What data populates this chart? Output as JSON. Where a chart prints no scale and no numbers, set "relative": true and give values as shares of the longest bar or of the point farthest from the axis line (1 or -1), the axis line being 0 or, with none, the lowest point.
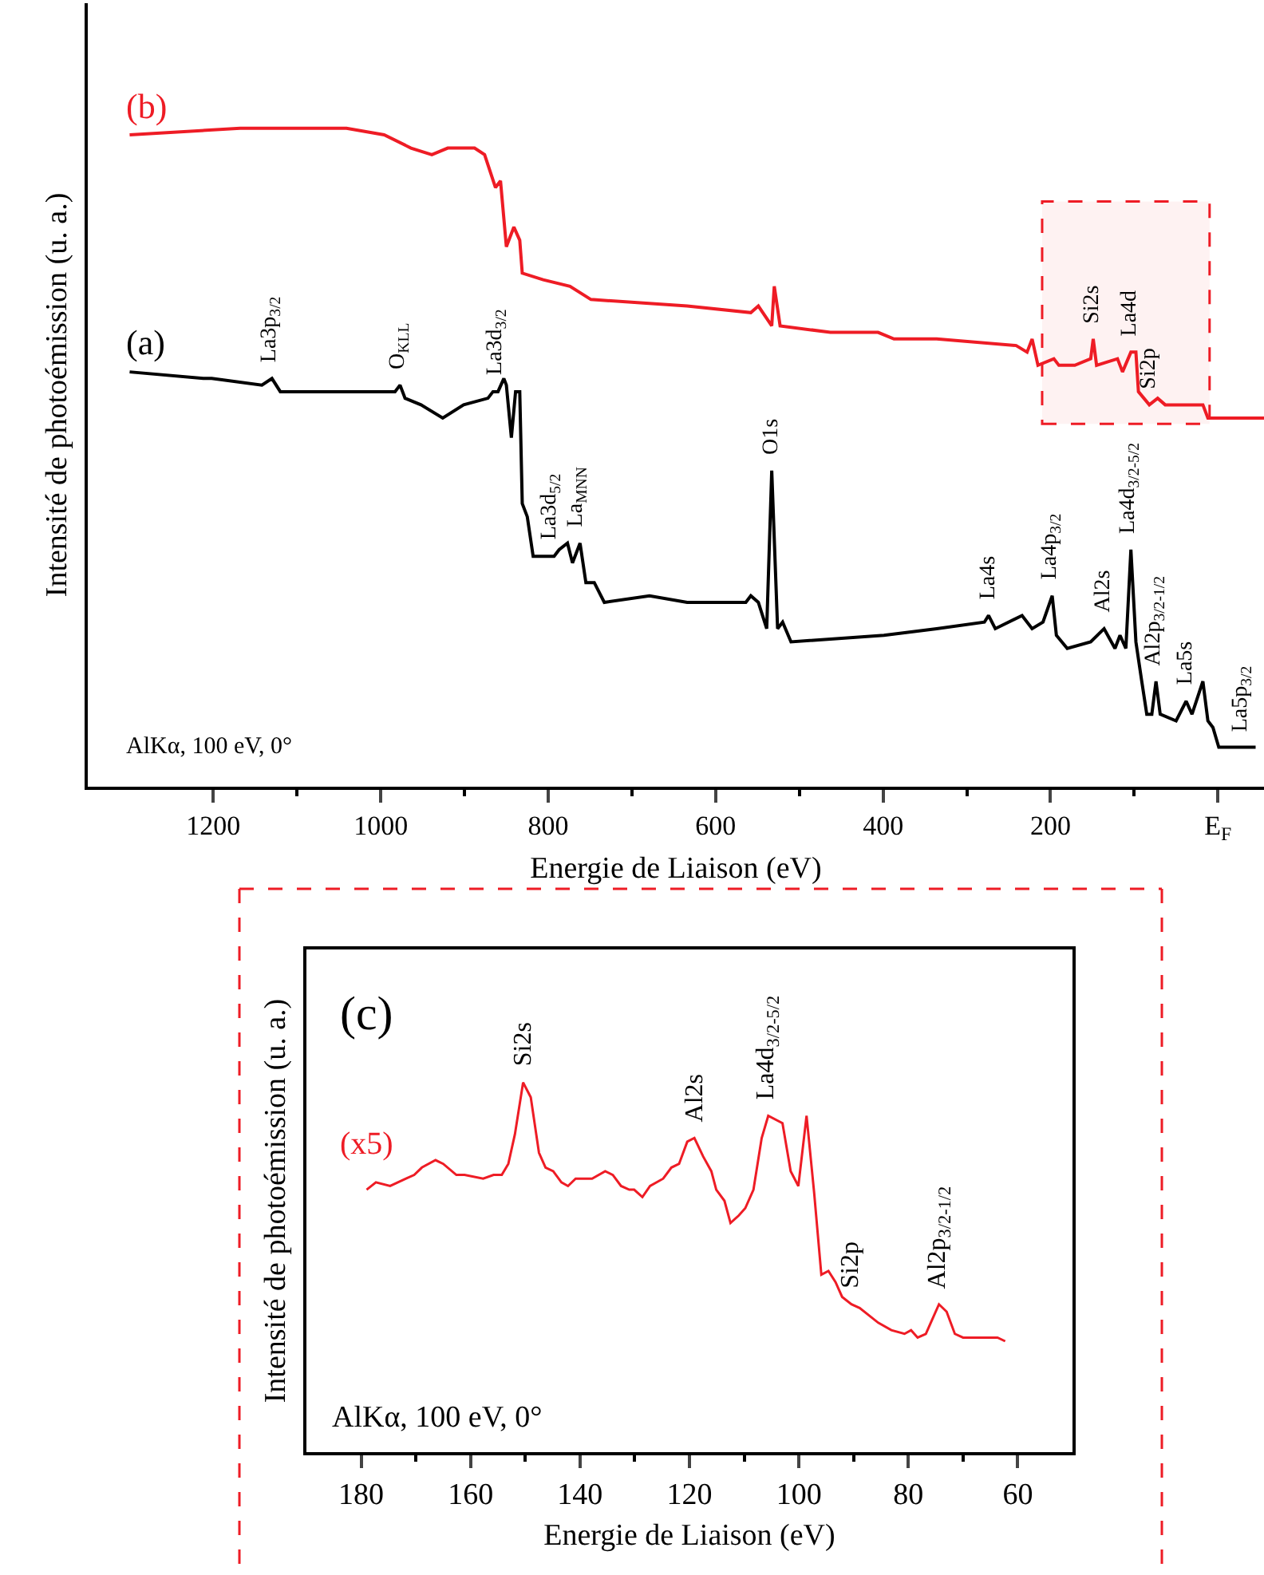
{
  "chart_data": [
    {
      "type": "line",
      "relative": true,
      "xlabel": "Energie de Liaison (eV)",
      "ylabel": "Intensité de photoémission (u. a.)",
      "xlim": [
        1350,
        -55
      ],
      "xticks": [
        1200,
        1000,
        800,
        600,
        400,
        200,
        {
          "value": 0,
          "label": "E$_{F}$"
        }
      ],
      "grid": false,
      "legend": false,
      "line_style": "solid",
      "series": [
        {
          "name": "(b)",
          "color": "#ee1c25",
          "x": [
            1300,
            1168,
            1041,
            996,
            964,
            939,
            920,
            888,
            876,
            863,
            857,
            850,
            841,
            834,
            831,
            806,
            774,
            749,
            634,
            558,
            549,
            533,
            530,
            523,
            463,
            406,
            387,
            336,
            241,
            228,
            222,
            215,
            196,
            190,
            171,
            152,
            149,
            145,
            120,
            114,
            104,
            98,
            95,
            82,
            72,
            63,
            18,
            12,
            -55
          ],
          "values": [
            0.99,
            1.0,
            1.0,
            0.99,
            0.97,
            0.96,
            0.97,
            0.97,
            0.96,
            0.91,
            0.92,
            0.82,
            0.85,
            0.83,
            0.78,
            0.77,
            0.76,
            0.74,
            0.73,
            0.72,
            0.73,
            0.7,
            0.76,
            0.7,
            0.69,
            0.69,
            0.68,
            0.68,
            0.67,
            0.66,
            0.68,
            0.64,
            0.65,
            0.64,
            0.64,
            0.65,
            0.68,
            0.64,
            0.65,
            0.63,
            0.66,
            0.66,
            0.6,
            0.58,
            0.59,
            0.58,
            0.58,
            0.56,
            0.56
          ]
        },
        {
          "name": "(a)",
          "color": "#000000",
          "x": [
            1300,
            1212,
            1208,
            1202,
            1142,
            1130,
            1120,
            1072,
            983,
            977,
            971,
            952,
            926,
            901,
            872,
            866,
            860,
            853,
            850,
            844,
            839,
            834,
            831,
            825,
            818,
            793,
            787,
            777,
            771,
            762,
            755,
            745,
            733,
            679,
            634,
            564,
            558,
            549,
            539,
            533,
            526,
            520,
            510,
            399,
            336,
            279,
            274,
            266,
            234,
            222,
            209,
            198,
            193,
            180,
            152,
            136,
            123,
            117,
            110,
            104,
            98,
            91,
            85,
            79,
            74,
            69,
            50,
            38,
            31,
            18,
            12,
            6,
            -1,
            -45
          ],
          "values": [
            0.63,
            0.62,
            0.62,
            0.62,
            0.61,
            0.62,
            0.6,
            0.6,
            0.6,
            0.61,
            0.59,
            0.58,
            0.56,
            0.58,
            0.59,
            0.6,
            0.6,
            0.62,
            0.61,
            0.53,
            0.6,
            0.6,
            0.43,
            0.41,
            0.35,
            0.35,
            0.36,
            0.37,
            0.34,
            0.37,
            0.31,
            0.31,
            0.28,
            0.29,
            0.28,
            0.28,
            0.29,
            0.28,
            0.24,
            0.48,
            0.24,
            0.25,
            0.22,
            0.23,
            0.24,
            0.25,
            0.26,
            0.24,
            0.26,
            0.24,
            0.25,
            0.29,
            0.23,
            0.21,
            0.22,
            0.24,
            0.21,
            0.23,
            0.21,
            0.36,
            0.22,
            0.16,
            0.11,
            0.11,
            0.16,
            0.11,
            0.1,
            0.13,
            0.11,
            0.16,
            0.1,
            0.09,
            0.06,
            0.06
          ]
        }
      ],
      "bands": [
        {
          "axis": "x",
          "from": 210,
          "to": 10,
          "color": "#ee1c25"
        }
      ],
      "annotations": [
        {
          "text": "La3p$_{3/2}$",
          "x": 1130,
          "y": 0.62
        },
        {
          "text": "O$_{KLL}$",
          "x": 977,
          "y": 0.61
        },
        {
          "text": "La3d$_{3/2}$",
          "x": 860,
          "y": 0.6
        },
        {
          "text": "La3d$_{5/2}$",
          "x": 797,
          "y": 0.35
        },
        {
          "text": "La$_{MNN}$",
          "x": 765,
          "y": 0.37
        },
        {
          "text": "O1s",
          "x": 533,
          "y": 0.48
        },
        {
          "text": "La4s",
          "x": 274,
          "y": 0.26
        },
        {
          "text": "La4p$_{3/2}$",
          "x": 198,
          "y": 0.29
        },
        {
          "text": "Al2s",
          "x": 136,
          "y": 0.24
        },
        {
          "text": "La4d$_{3/2-5/2}$",
          "x": 104,
          "y": 0.36
        },
        {
          "text": "Al2p$_{3/2-1/2}$",
          "x": 74,
          "y": 0.16
        },
        {
          "text": "La5s",
          "x": 38,
          "y": 0.13
        },
        {
          "text": "La5p$_{3/2}$",
          "x": -30,
          "y": 0.06
        },
        {
          "text": "Si2s",
          "x": 150,
          "y": 0.68
        },
        {
          "text": "La4d",
          "x": 106,
          "y": 0.66
        },
        {
          "text": "Si2p",
          "x": 82,
          "y": 0.58
        },
        "AlKα, 100 eV, 0°"
      ]
    },
    {
      "type": "line",
      "relative": true,
      "xlabel": "Energie de Liaison (eV)",
      "ylabel": "Intensité de photoémission (u. a.)",
      "xlim": [
        190,
        50
      ],
      "xticks": [
        180,
        160,
        140,
        120,
        100,
        80,
        60
      ],
      "grid": false,
      "legend": false,
      "line_style": "solid",
      "series": [
        {
          "name": "(x5)",
          "color": "#ee1c25",
          "x": [
            179,
            177.3,
            174.7,
            171.8,
            170.3,
            168.9,
            166.4,
            165,
            162.6,
            161.1,
            157.7,
            155.8,
            154.3,
            153.1,
            151.9,
            150.4,
            149,
            147.5,
            146.3,
            144.9,
            143.4,
            142.2,
            140.8,
            139.3,
            137.8,
            135.4,
            134,
            132.5,
            131,
            130.1,
            128.6,
            127.2,
            124.8,
            123.3,
            121.9,
            120.4,
            119.1,
            117.5,
            116,
            115.1,
            113.6,
            112.5,
            111,
            109.8,
            108.3,
            106.8,
            105.6,
            103,
            101.5,
            100.1,
            98.6,
            97.2,
            95.9,
            94.6,
            93.3,
            92.1,
            90.4,
            88.9,
            85.5,
            83.1,
            80.7,
            79.5,
            78.3,
            76.8,
            75.9,
            74.4,
            73,
            71.5,
            70,
            67.6,
            65.7,
            63.7,
            62.3
          ],
          "values": [
            0.71,
            0.73,
            0.72,
            0.74,
            0.75,
            0.77,
            0.79,
            0.78,
            0.75,
            0.75,
            0.74,
            0.75,
            0.75,
            0.78,
            0.86,
            1.0,
            0.96,
            0.81,
            0.77,
            0.76,
            0.73,
            0.72,
            0.74,
            0.74,
            0.74,
            0.76,
            0.75,
            0.72,
            0.71,
            0.71,
            0.69,
            0.72,
            0.74,
            0.77,
            0.78,
            0.84,
            0.85,
            0.8,
            0.76,
            0.71,
            0.68,
            0.62,
            0.64,
            0.66,
            0.71,
            0.85,
            0.91,
            0.89,
            0.76,
            0.72,
            0.91,
            0.7,
            0.48,
            0.49,
            0.46,
            0.42,
            0.4,
            0.39,
            0.35,
            0.33,
            0.32,
            0.33,
            0.31,
            0.32,
            0.35,
            0.4,
            0.38,
            0.32,
            0.31,
            0.31,
            0.31,
            0.31,
            0.3
          ]
        }
      ],
      "annotations": [
        {
          "text": "Si2s",
          "x": 150.4,
          "y": 1.0
        },
        {
          "text": "Al2s",
          "x": 119.1,
          "y": 0.85
        },
        {
          "text": "La4d$_{3/2-5/2}$",
          "x": 105.6,
          "y": 0.91
        },
        {
          "text": "Si2p",
          "x": 90.4,
          "y": 0.4
        },
        {
          "text": "Al2p$_{3/2-1/2}$",
          "x": 74.4,
          "y": 0.4
        },
        "(c)",
        "AlKα, 100 eV, 0°"
      ]
    }
  ]
}
